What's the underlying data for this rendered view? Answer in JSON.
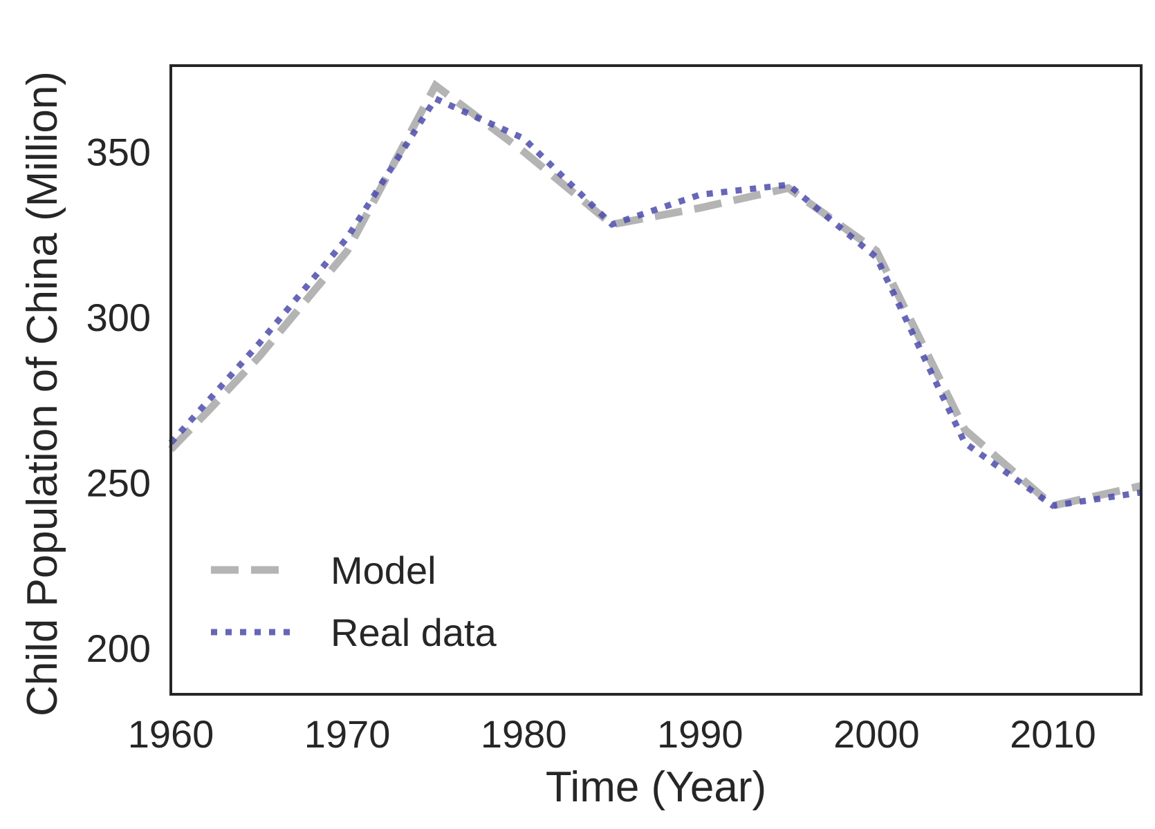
{
  "chart_data": {
    "type": "line",
    "title": "",
    "xlabel": "Time (Year)",
    "ylabel": "Child Population of China (Million)",
    "xlim": [
      1960,
      2015
    ],
    "ylim": [
      186,
      376
    ],
    "xticks": [
      "1960",
      "1970",
      "1980",
      "1990",
      "2000",
      "2010"
    ],
    "yticks": [
      "200",
      "250",
      "300",
      "350"
    ],
    "grid": false,
    "legend_position": "lower-left",
    "series": [
      {
        "name": "Model",
        "style": "dashed",
        "color": "#b0b0b0",
        "x": [
          1960,
          1962,
          1965,
          1970,
          1975,
          1980,
          1985,
          1990,
          1995,
          2000,
          2005,
          2010,
          2015
        ],
        "y": [
          260,
          271,
          288,
          320,
          370,
          350,
          328,
          333,
          339,
          320,
          266,
          243,
          249
        ]
      },
      {
        "name": "Real data",
        "style": "dotted",
        "color": "#4b4bb0",
        "x": [
          1960,
          1962,
          1965,
          1970,
          1975,
          1980,
          1985,
          1990,
          1995,
          2000,
          2005,
          2010,
          2015
        ],
        "y": [
          262,
          274,
          292,
          324,
          366,
          354,
          328,
          337,
          340,
          318,
          262,
          243,
          247
        ]
      }
    ]
  }
}
